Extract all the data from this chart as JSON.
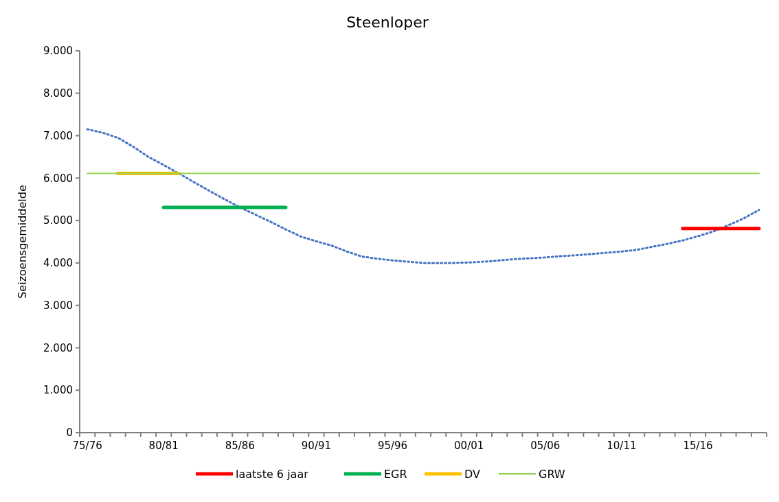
{
  "chart_data": {
    "type": "line",
    "title": "Steenloper",
    "ylabel": "Seizoensgemiddelde",
    "categories": [
      "75/76",
      null,
      null,
      null,
      null,
      "80/81",
      null,
      null,
      null,
      null,
      "85/86",
      null,
      null,
      null,
      null,
      "90/91",
      null,
      null,
      null,
      null,
      "95/96",
      null,
      null,
      null,
      null,
      "00/01",
      null,
      null,
      null,
      null,
      "05/06",
      null,
      null,
      null,
      null,
      "10/11",
      null,
      null,
      null,
      null,
      "15/16",
      null,
      null,
      null,
      null
    ],
    "ylim": [
      0,
      9000
    ],
    "yticks": [
      {
        "value": 0,
        "label": "0"
      },
      {
        "value": 1000,
        "label": "1.000"
      },
      {
        "value": 2000,
        "label": "2.000"
      },
      {
        "value": 3000,
        "label": "3.000"
      },
      {
        "value": 4000,
        "label": "4.000"
      },
      {
        "value": 5000,
        "label": "5.000"
      },
      {
        "value": 6000,
        "label": "6.000"
      },
      {
        "value": 7000,
        "label": "7.000"
      },
      {
        "value": 8000,
        "label": "8.000"
      },
      {
        "value": 9000,
        "label": "9.000"
      }
    ],
    "legend": "bottom",
    "grid": false,
    "series": [
      {
        "color": "#4472c4",
        "line_style": "dotted",
        "values": [
          7150,
          7070,
          6950,
          6740,
          6500,
          6310,
          6110,
          5900,
          5700,
          5500,
          5310,
          5140,
          4970,
          4790,
          4620,
          4510,
          4410,
          4270,
          4150,
          4100,
          4060,
          4030,
          4000,
          4000,
          4000,
          4010,
          4030,
          4060,
          4090,
          4110,
          4130,
          4160,
          4180,
          4210,
          4240,
          4270,
          4310,
          4380,
          4450,
          4530,
          4630,
          4740,
          4890,
          5050,
          5250
        ]
      },
      {
        "name": "laatste 6 jaar",
        "color": "#ff0000",
        "line_style": "solid",
        "values": [
          null,
          null,
          null,
          null,
          null,
          null,
          null,
          null,
          null,
          null,
          null,
          null,
          null,
          null,
          null,
          null,
          null,
          null,
          null,
          null,
          null,
          null,
          null,
          null,
          null,
          null,
          null,
          null,
          null,
          null,
          null,
          null,
          null,
          null,
          null,
          null,
          null,
          null,
          null,
          4810,
          4810,
          4810,
          4810,
          4810,
          4810
        ]
      },
      {
        "name": "EGR",
        "color": "#00b050",
        "line_style": "solid",
        "values": [
          null,
          null,
          null,
          null,
          null,
          5310,
          5310,
          5310,
          5310,
          5310,
          5310,
          5310,
          5310,
          5310,
          null,
          null,
          null,
          null,
          null,
          null,
          null,
          null,
          null,
          null,
          null,
          null,
          null,
          null,
          null,
          null,
          null,
          null,
          null,
          null,
          null,
          null,
          null,
          null,
          null,
          null,
          null,
          null,
          null,
          null,
          null
        ]
      },
      {
        "name": "DV",
        "color": "#ffc000",
        "line_style": "solid",
        "values": [
          null,
          null,
          6110,
          6110,
          6110,
          6110,
          6110,
          null,
          null,
          null,
          null,
          null,
          null,
          null,
          null,
          null,
          null,
          null,
          null,
          null,
          null,
          null,
          null,
          null,
          null,
          null,
          null,
          null,
          null,
          null,
          null,
          null,
          null,
          null,
          null,
          null,
          null,
          null,
          null,
          null,
          null,
          null,
          null,
          null,
          null
        ]
      },
      {
        "name": "GRW",
        "color": "#92d050",
        "line_style": "solid",
        "values": [
          6110,
          6110,
          6110,
          6110,
          6110,
          6110,
          6110,
          6110,
          6110,
          6110,
          6110,
          6110,
          6110,
          6110,
          6110,
          6110,
          6110,
          6110,
          6110,
          6110,
          6110,
          6110,
          6110,
          6110,
          6110,
          6110,
          6110,
          6110,
          6110,
          6110,
          6110,
          6110,
          6110,
          6110,
          6110,
          6110,
          6110,
          6110,
          6110,
          6110,
          6110,
          6110,
          6110,
          6110,
          6110
        ]
      }
    ]
  }
}
